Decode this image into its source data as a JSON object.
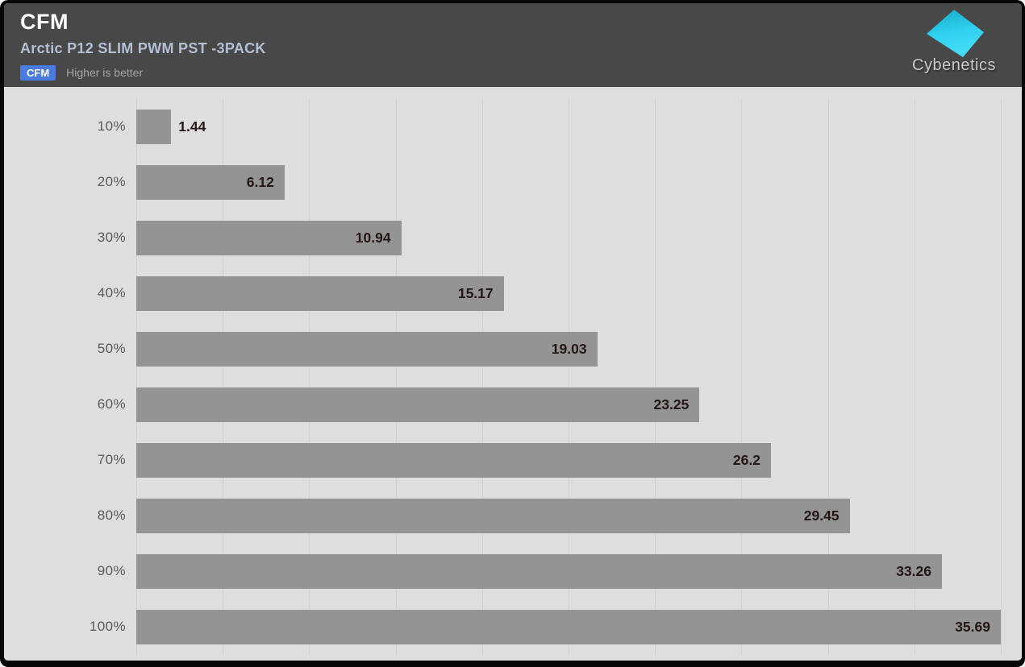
{
  "header": {
    "title": "CFM",
    "subtitle": "Arctic P12 SLIM PWM PST -3PACK",
    "metric_badge": "CFM",
    "metric_note": "Higher is better",
    "logo_text": "Cybenetics"
  },
  "colors": {
    "header_bg": "#484848",
    "badge_bg": "#4a7ce0",
    "subtitle_text": "#b4bfd3",
    "chart_bg": "#dedede",
    "bar": "#949494",
    "gridline": "#d2d2d2",
    "value_text": "#231616",
    "category_text": "#595959",
    "logo_cyan_top": "#18a9c9",
    "logo_cyan_bottom": "#45ddf6"
  },
  "chart_data": {
    "type": "bar",
    "orientation": "horizontal",
    "title": "CFM",
    "subtitle": "Arctic P12 SLIM PWM PST -3PACK",
    "note": "Higher is better",
    "categories": [
      "10%",
      "20%",
      "30%",
      "40%",
      "50%",
      "60%",
      "70%",
      "80%",
      "90%",
      "100%"
    ],
    "values": [
      1.44,
      6.12,
      10.94,
      15.17,
      19.03,
      23.25,
      26.2,
      29.45,
      33.26,
      35.69
    ],
    "value_labels": [
      "1.44",
      "6.12",
      "10.94",
      "15.17",
      "19.03",
      "23.25",
      "26.2",
      "29.45",
      "33.26",
      "35.69"
    ],
    "xlabel": "",
    "ylabel": "",
    "xlim": [
      0,
      35.69
    ],
    "grid": true,
    "gridline_count": 11,
    "legend": "none",
    "bar_value_labels_shown": true
  }
}
